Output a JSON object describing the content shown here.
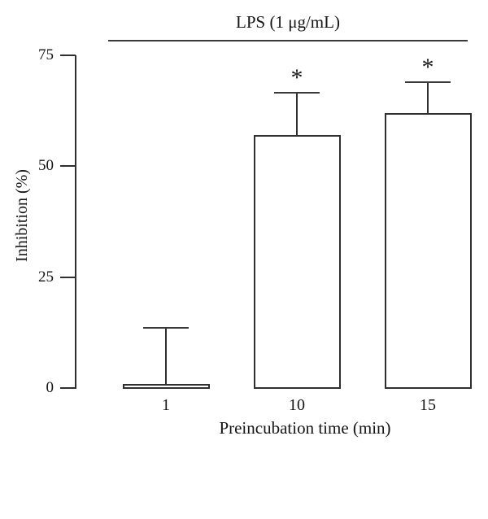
{
  "figure": {
    "group_label": "LPS (1 μg/mL)"
  },
  "chart_data": {
    "type": "bar",
    "title": "LPS (1 μg/mL)",
    "xlabel": "Preincubation time (min)",
    "ylabel": "Inhibition (%)",
    "categories": [
      "1",
      "10",
      "15"
    ],
    "values": [
      1,
      57,
      62
    ],
    "errors_up": [
      12.5,
      9.5,
      7
    ],
    "significance": [
      "",
      "*",
      "*"
    ],
    "yticks": [
      0,
      25,
      50,
      75
    ],
    "ylim": [
      0,
      75
    ],
    "grid": false,
    "legend_position": "none",
    "bar_fill_color": "#ffffff",
    "line_color": "#2f2f2f",
    "background_color": "#ffffff"
  }
}
